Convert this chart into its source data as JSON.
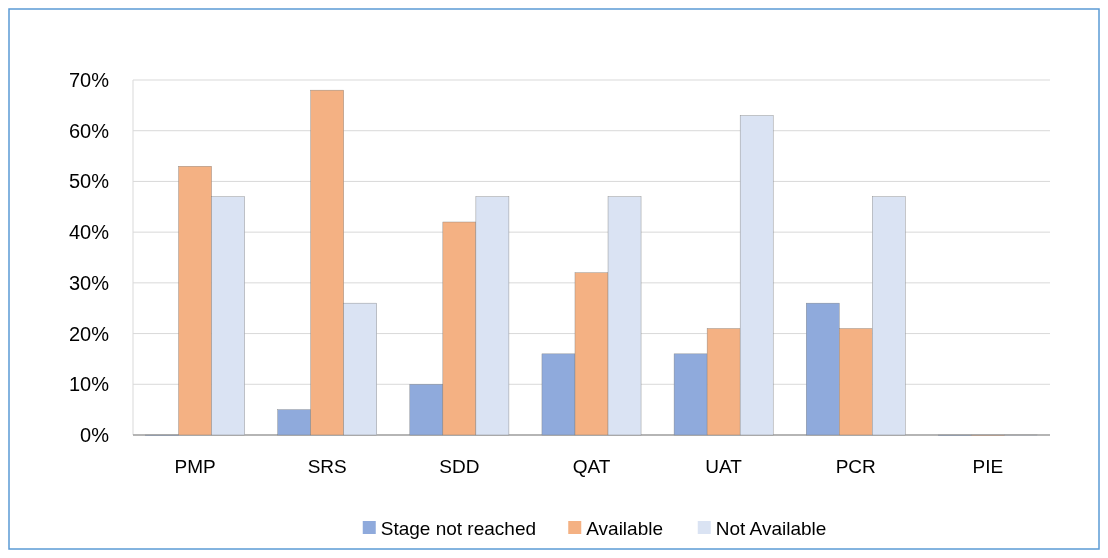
{
  "chart_data": {
    "type": "bar",
    "categories": [
      "PMP",
      "SRS",
      "SDD",
      "QAT",
      "UAT",
      "PCR",
      "PIE"
    ],
    "series": [
      {
        "name": "Stage not reached",
        "color": "#8faadc",
        "values": [
          0,
          5,
          10,
          16,
          16,
          26,
          0
        ]
      },
      {
        "name": "Available",
        "color": "#f4b183",
        "values": [
          53,
          68,
          42,
          32,
          21,
          21,
          0
        ]
      },
      {
        "name": "Not Available",
        "color": "#dae3f3",
        "values": [
          47,
          26,
          47,
          47,
          63,
          47,
          0
        ]
      }
    ],
    "ylim": [
      0,
      70
    ],
    "yticks": [
      {
        "value": 0,
        "label": "0%"
      },
      {
        "value": 10,
        "label": "10%"
      },
      {
        "value": 20,
        "label": "20%"
      },
      {
        "value": 30,
        "label": "30%"
      },
      {
        "value": 40,
        "label": "40%"
      },
      {
        "value": 50,
        "label": "50%"
      },
      {
        "value": 60,
        "label": "60%"
      },
      {
        "value": 70,
        "label": "70%"
      }
    ],
    "grid": "y",
    "legend": "bottom"
  }
}
